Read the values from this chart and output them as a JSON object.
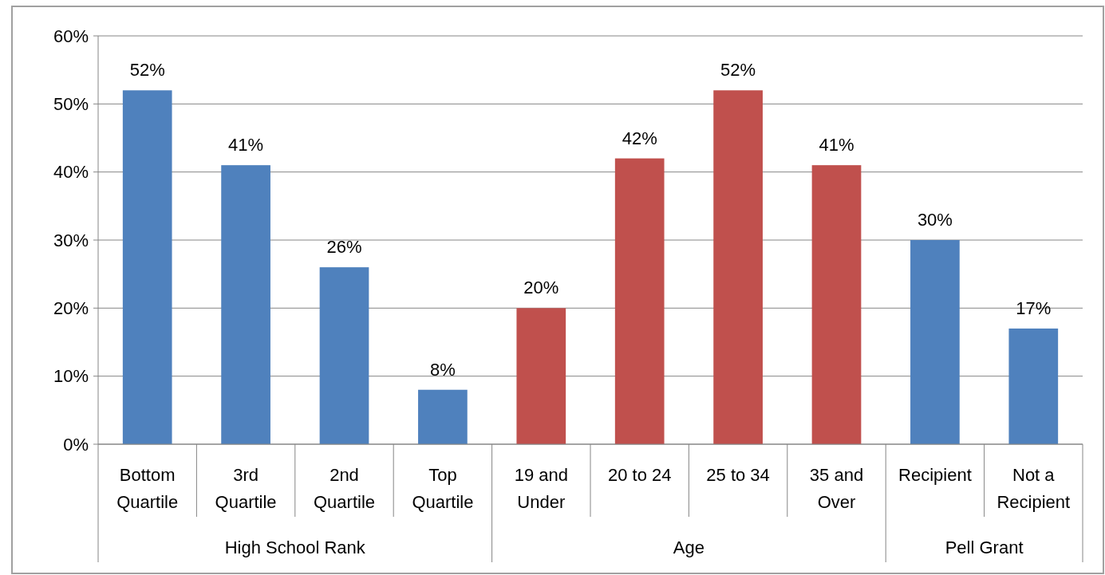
{
  "chart_data": {
    "type": "bar",
    "categories": [
      "Bottom Quartile",
      "3rd Quartile",
      "2nd Quartile",
      "Top Quartile",
      "19 and Under",
      "20 to 24",
      "25 to 34",
      "35 and Over",
      "Recipient",
      "Not a Recipient"
    ],
    "values": [
      52,
      41,
      26,
      8,
      20,
      42,
      52,
      41,
      30,
      17
    ],
    "value_labels": [
      "52%",
      "41%",
      "26%",
      "8%",
      "20%",
      "42%",
      "52%",
      "41%",
      "30%",
      "17%"
    ],
    "colors": [
      "#4f81bd",
      "#4f81bd",
      "#4f81bd",
      "#4f81bd",
      "#c0504d",
      "#c0504d",
      "#c0504d",
      "#c0504d",
      "#4f81bd",
      "#4f81bd"
    ],
    "annotations": [
      "High School Rank",
      "Age",
      "Pell Grant"
    ],
    "ylim": [
      0,
      60
    ],
    "yticks": [
      {
        "value": 0,
        "label": "0%"
      },
      {
        "value": 10,
        "label": "10%"
      },
      {
        "value": 20,
        "label": "20%"
      },
      {
        "value": 30,
        "label": "30%"
      },
      {
        "value": 40,
        "label": "40%"
      },
      {
        "value": 50,
        "label": "50%"
      },
      {
        "value": 60,
        "label": "60%"
      }
    ],
    "grid": "y"
  }
}
